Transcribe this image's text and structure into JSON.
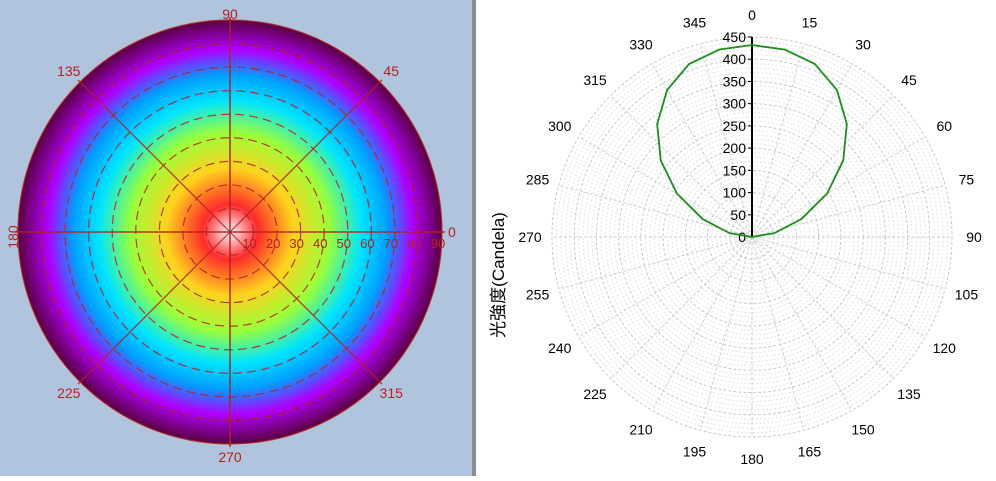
{
  "chart_data": [
    {
      "type": "heatmap",
      "projection": "polar",
      "angle_labels": [
        "0",
        "45",
        "90",
        "135",
        "180",
        "225",
        "270",
        "315"
      ],
      "radial_labels": [
        "10",
        "20",
        "30",
        "40",
        "50",
        "60",
        "70",
        "80",
        "90"
      ],
      "radial_range": [
        0,
        90
      ],
      "background_color": "#b0c4de",
      "grid_color": "#b22222",
      "colormap": [
        "#ffffff",
        "#ff2a2a",
        "#ffd21e",
        "#9aff3a",
        "#00e5ff",
        "#00a0ff",
        "#b000ff",
        "#5a0040"
      ]
    },
    {
      "type": "line",
      "projection": "polar",
      "ylabel": "光強度(Candela)",
      "angle_labels": [
        "0",
        "345",
        "330",
        "315",
        "300",
        "285",
        "270",
        "255",
        "240",
        "225",
        "210",
        "195",
        "180",
        "165",
        "150",
        "135",
        "120",
        "105",
        "90",
        "75",
        "60",
        "45",
        "30",
        "15"
      ],
      "radial_tick_labels": [
        "0",
        "50",
        "100",
        "150",
        "200",
        "250",
        "300",
        "350",
        "400",
        "450"
      ],
      "ylim": [
        0,
        450
      ],
      "grid": true,
      "series": [
        {
          "color": "#1e8c1e",
          "x": [
            -90,
            -80,
            -70,
            -60,
            -50,
            -40,
            -30,
            -20,
            -10,
            0,
            10,
            20,
            30,
            40,
            50,
            60,
            70,
            80,
            90
          ],
          "y": [
            0,
            52,
            118,
            195,
            268,
            332,
            382,
            414,
            428,
            432,
            428,
            414,
            382,
            332,
            268,
            195,
            118,
            52,
            0
          ]
        }
      ]
    }
  ]
}
